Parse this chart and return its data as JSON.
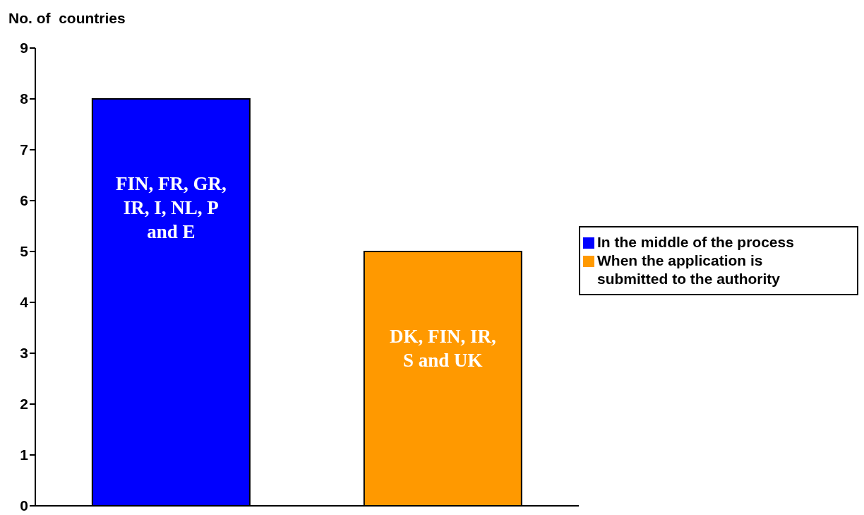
{
  "chart_data": {
    "type": "bar",
    "ylabel": "No. of  countries",
    "categories": [
      null,
      null
    ],
    "stacked": true,
    "ylim": [
      0,
      9
    ],
    "yticks": [
      0,
      1,
      2,
      3,
      4,
      5,
      6,
      7,
      8,
      9
    ],
    "grid": false,
    "legend": "right",
    "series": [
      {
        "name": "In the middle of the process",
        "color": "#0000ff",
        "values": [
          8,
          null
        ],
        "value_labels": [
          "FIN, FR, GR, IR, I, NL, P and E",
          null
        ]
      },
      {
        "name": "When the application is submitted to the authority",
        "color": "#ff9900",
        "values": [
          null,
          5
        ],
        "value_labels": [
          null,
          "DK, FIN, IR, S and UK"
        ]
      }
    ]
  }
}
